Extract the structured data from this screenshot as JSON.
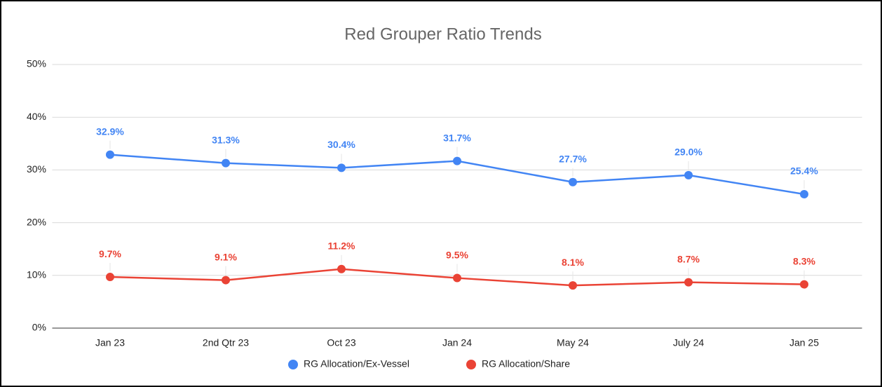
{
  "chart_data": {
    "type": "line",
    "title": "Red Grouper Ratio Trends",
    "categories": [
      "Jan 23",
      "2nd Qtr 23",
      "Oct 23",
      "Jan 24",
      "May 24",
      "July 24",
      "Jan 25"
    ],
    "series": [
      {
        "name": "RG Allocation/Ex-Vessel",
        "color": "#4285f4",
        "values": [
          32.9,
          31.3,
          30.4,
          31.7,
          27.7,
          29.0,
          25.4
        ],
        "value_labels": [
          "32.9%",
          "31.3%",
          "30.4%",
          "31.7%",
          "27.7%",
          "29.0%",
          "25.4%"
        ]
      },
      {
        "name": "RG Allocation/Share",
        "color": "#ea4335",
        "values": [
          9.7,
          9.1,
          11.2,
          9.5,
          8.1,
          8.7,
          8.3
        ],
        "value_labels": [
          "9.7%",
          "9.1%",
          "11.2%",
          "9.5%",
          "8.1%",
          "8.7%",
          "8.3%"
        ]
      }
    ],
    "ylim": [
      0,
      50
    ],
    "yticks": [
      {
        "value": 0,
        "label": "0%"
      },
      {
        "value": 10,
        "label": "10%"
      },
      {
        "value": 20,
        "label": "20%"
      },
      {
        "value": 30,
        "label": "30%"
      },
      {
        "value": 40,
        "label": "40%"
      },
      {
        "value": 50,
        "label": "50%"
      }
    ],
    "grid": true,
    "legend": "bottom"
  }
}
